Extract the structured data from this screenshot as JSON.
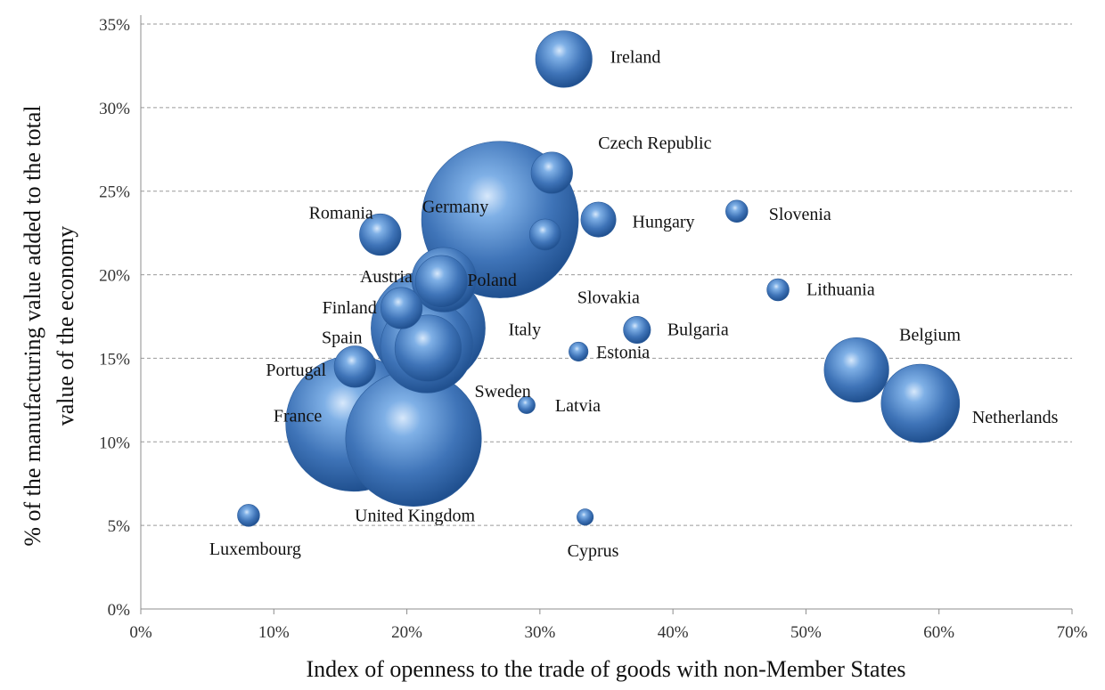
{
  "chart_data": {
    "type": "bubble",
    "xlabel": "Index of openness to the trade of goods with non-Member States",
    "ylabel": "% of the manufacturing value added to the total value of the economy",
    "xlim": [
      0,
      0.7
    ],
    "ylim": [
      0,
      0.35
    ],
    "x_ticks": [
      "0%",
      "10%",
      "20%",
      "30%",
      "40%",
      "50%",
      "60%",
      "70%"
    ],
    "y_ticks": [
      "0%",
      "5%",
      "10%",
      "15%",
      "20%",
      "25%",
      "30%",
      "35%"
    ],
    "grid": "horizontal dashed",
    "bubble_color": "#3f74b8",
    "points": [
      {
        "label": "Ireland",
        "x": 0.318,
        "y": 0.329,
        "size": 13
      },
      {
        "label": "Czech Republic",
        "x": 0.309,
        "y": 0.261,
        "size": 7
      },
      {
        "label": "Germany",
        "x": 0.27,
        "y": 0.233,
        "size": 100
      },
      {
        "label": "Hungary",
        "x": 0.344,
        "y": 0.233,
        "size": 5
      },
      {
        "label": "Slovenia",
        "x": 0.448,
        "y": 0.238,
        "size": 2
      },
      {
        "label": "Romania",
        "x": 0.18,
        "y": 0.224,
        "size": 7
      },
      {
        "label": "Slovakia",
        "x": 0.304,
        "y": 0.224,
        "size": 4
      },
      {
        "label": "Poland",
        "x": 0.228,
        "y": 0.197,
        "size": 17
      },
      {
        "label": "Austria",
        "x": 0.226,
        "y": 0.196,
        "size": 11
      },
      {
        "label": "Lithuania",
        "x": 0.479,
        "y": 0.191,
        "size": 2
      },
      {
        "label": "Finland",
        "x": 0.196,
        "y": 0.18,
        "size": 7
      },
      {
        "label": "Italy",
        "x": 0.216,
        "y": 0.168,
        "size": 53
      },
      {
        "label": "Bulgaria",
        "x": 0.373,
        "y": 0.167,
        "size": 3
      },
      {
        "label": "Spain",
        "x": 0.215,
        "y": 0.157,
        "size": 35
      },
      {
        "label": "Estonia",
        "x": 0.329,
        "y": 0.154,
        "size": 1.5
      },
      {
        "label": "Portugal",
        "x": 0.161,
        "y": 0.145,
        "size": 7
      },
      {
        "label": "Sweden",
        "x": 0.216,
        "y": 0.156,
        "size": 18
      },
      {
        "label": "Belgium",
        "x": 0.538,
        "y": 0.143,
        "size": 17
      },
      {
        "label": "Netherlands",
        "x": 0.586,
        "y": 0.123,
        "size": 25
      },
      {
        "label": "Latvia",
        "x": 0.29,
        "y": 0.122,
        "size": 1.2
      },
      {
        "label": "France",
        "x": 0.16,
        "y": 0.111,
        "size": 75
      },
      {
        "label": "United Kingdom",
        "x": 0.205,
        "y": 0.102,
        "size": 75
      },
      {
        "label": "Luxembourg",
        "x": 0.081,
        "y": 0.056,
        "size": 2
      },
      {
        "label": "Cyprus",
        "x": 0.334,
        "y": 0.055,
        "size": 1.1
      }
    ]
  }
}
